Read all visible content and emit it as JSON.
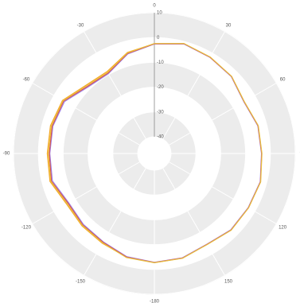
{
  "chart_data": {
    "type": "polar",
    "theta": [
      0,
      15,
      30,
      45,
      60,
      75,
      90,
      105,
      120,
      135,
      150,
      165,
      180,
      -165,
      -150,
      -135,
      -120,
      -105,
      -90,
      -75,
      -60,
      -45,
      -30,
      -15
    ],
    "series": [
      {
        "color": "#f5a623",
        "values": [
          -2.5,
          -0.9,
          -1.9,
          -2.8,
          -5.0,
          -3.5,
          -3.5,
          -2.5,
          -3.0,
          -3.1,
          -4.4,
          -3.1,
          -2.8,
          -3.5,
          -4.9,
          -5.5,
          -5.9,
          -3.2,
          -3.6,
          -3.4,
          -4.0,
          -7.8,
          -8.6,
          -4.6
        ]
      },
      {
        "color": "#9b7fe6",
        "values": [
          -2.6,
          -1.0,
          -2.0,
          -2.9,
          -5.1,
          -3.6,
          -3.6,
          -2.6,
          -3.1,
          -3.2,
          -4.5,
          -3.2,
          -2.9,
          -3.7,
          -5.6,
          -6.3,
          -6.9,
          -4.2,
          -4.6,
          -4.4,
          -4.9,
          -8.9,
          -9.6,
          -5.2
        ]
      },
      {
        "color": "#d9534f",
        "values": [
          -2.5,
          -0.9,
          -1.9,
          -2.8,
          -5.0,
          -3.5,
          -3.5,
          -2.5,
          -3.0,
          -3.1,
          -4.4,
          -3.1,
          -2.8,
          -3.5,
          -5.4,
          -6.0,
          -6.6,
          -3.8,
          -4.4,
          -4.1,
          -4.5,
          -8.5,
          -9.3,
          -5.0
        ]
      },
      {
        "color": "#e8c040",
        "values": [
          -2.4,
          -0.8,
          -1.8,
          -2.7,
          -4.9,
          -3.4,
          -3.4,
          -2.4,
          -2.9,
          -3.0,
          -4.3,
          -3.0,
          -2.7,
          -3.3,
          -5.1,
          -5.7,
          -6.2,
          -3.5,
          -4.0,
          -3.8,
          -4.2,
          -8.1,
          -9.0,
          -4.8
        ]
      }
    ],
    "rlim": [
      -40,
      10
    ],
    "rticks": [
      10,
      0,
      -10,
      -20,
      -30,
      -40
    ],
    "thetaticks": [
      0,
      30,
      60,
      90,
      120,
      150,
      -180,
      -150,
      -120,
      -90,
      -60,
      -30
    ]
  }
}
